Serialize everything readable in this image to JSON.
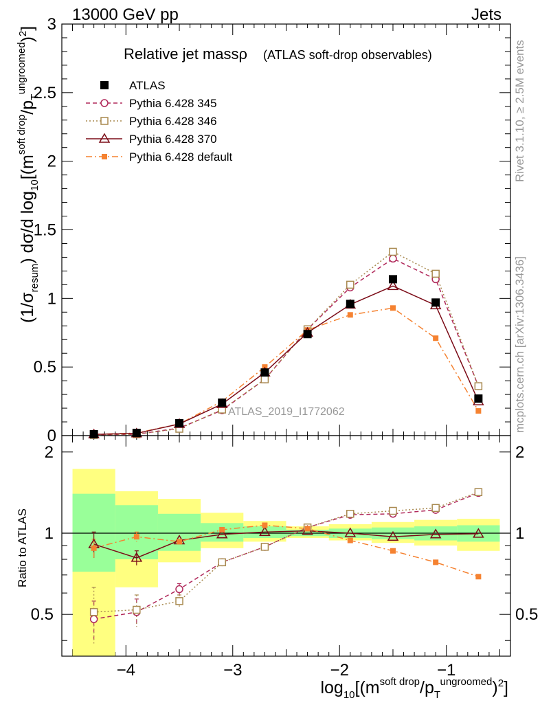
{
  "header": {
    "left": "13000 GeV pp",
    "right": "Jets"
  },
  "side_labels": {
    "rivet": "Rivet 3.1.10, ≥ 2.5M events",
    "mcplots": "mcplots.cern.ch [arXiv:1306.3436]"
  },
  "colors": {
    "atlas": "#000000",
    "p345": "#b0285a",
    "p346": "#a8894f",
    "p370": "#7b0b17",
    "pdef": "#f58231",
    "band_inner": "#99ff99",
    "band_outer": "#ffff80"
  },
  "chart_data": [
    {
      "type": "line",
      "title": "Relative jet massρ",
      "subtitle": "(ATLAS soft-drop observables)",
      "watermark": "ATLAS_2019_I1772062",
      "ylabel": "(1/σ_resum) dσ/d log10[(m^soft drop/pT^ungroomed)^2]",
      "xlim": [
        -4.6,
        -0.4
      ],
      "ylim": [
        0,
        3
      ],
      "yticks": [
        "0",
        "0.5",
        "1",
        "1.5",
        "2",
        "2.5",
        "3"
      ],
      "legend_position": "top-left",
      "x": [
        -4.3,
        -3.9,
        -3.5,
        -3.1,
        -2.7,
        -2.3,
        -1.9,
        -1.5,
        -1.1,
        -0.7
      ],
      "series": [
        {
          "name": "ATLAS",
          "key": "atlas",
          "values": [
            0.01,
            0.02,
            0.09,
            0.24,
            0.46,
            0.74,
            0.96,
            1.14,
            0.97,
            0.27
          ]
        },
        {
          "name": "Pythia 6.428 345",
          "key": "p345",
          "values": [
            0.005,
            0.01,
            0.055,
            0.185,
            0.41,
            0.775,
            1.08,
            1.29,
            1.14,
            0.36
          ]
        },
        {
          "name": "Pythia 6.428 346",
          "key": "p346",
          "values": [
            0.005,
            0.01,
            0.05,
            0.19,
            0.41,
            0.775,
            1.1,
            1.34,
            1.18,
            0.36
          ]
        },
        {
          "name": "Pythia 6.428 370",
          "key": "p370",
          "values": [
            0.009,
            0.016,
            0.085,
            0.23,
            0.46,
            0.75,
            0.955,
            1.09,
            0.95,
            0.25
          ]
        },
        {
          "name": "Pythia 6.428 default",
          "key": "pdef",
          "values": [
            0.009,
            0.019,
            0.085,
            0.25,
            0.5,
            0.77,
            0.88,
            0.93,
            0.71,
            0.18
          ]
        }
      ]
    },
    {
      "type": "line",
      "ylabel": "Ratio to ATLAS",
      "xlabel": "log10[(m^soft drop/pT^ungroomed)^2]",
      "xlim": [
        -4.6,
        -0.4
      ],
      "ylim": [
        0.35,
        2.3
      ],
      "xticks": [
        "−4",
        "−3",
        "−2",
        "−1"
      ],
      "yticks": [
        "0.5",
        "1",
        "2"
      ],
      "x": [
        -4.3,
        -3.9,
        -3.5,
        -3.1,
        -2.7,
        -2.3,
        -1.9,
        -1.5,
        -1.1,
        -0.7
      ],
      "bins": [
        [
          -4.5,
          -4.1
        ],
        [
          -4.1,
          -3.7
        ],
        [
          -3.7,
          -3.3
        ],
        [
          -3.3,
          -2.9
        ],
        [
          -2.9,
          -2.5
        ],
        [
          -2.5,
          -2.1
        ],
        [
          -2.1,
          -1.7
        ],
        [
          -1.7,
          -1.3
        ],
        [
          -1.3,
          -0.9
        ],
        [
          -0.9,
          -0.5
        ]
      ],
      "band_inner": [
        [
          0.72,
          1.4
        ],
        [
          0.8,
          1.27
        ],
        [
          0.86,
          1.18
        ],
        [
          0.93,
          1.09
        ],
        [
          0.96,
          1.06
        ],
        [
          0.975,
          1.03
        ],
        [
          0.96,
          1.04
        ],
        [
          0.95,
          1.05
        ],
        [
          0.94,
          1.06
        ],
        [
          0.93,
          1.07
        ]
      ],
      "band_outer": [
        [
          0.35,
          1.73
        ],
        [
          0.63,
          1.43
        ],
        [
          0.78,
          1.34
        ],
        [
          0.88,
          1.19
        ],
        [
          0.93,
          1.11
        ],
        [
          0.96,
          1.06
        ],
        [
          0.94,
          1.08
        ],
        [
          0.92,
          1.1
        ],
        [
          0.9,
          1.12
        ],
        [
          0.86,
          1.13
        ]
      ],
      "series": [
        {
          "name": "Pythia 6.428 345",
          "key": "p345",
          "values": [
            0.48,
            0.51,
            0.62,
            0.78,
            0.89,
            1.05,
            1.17,
            1.18,
            1.22,
            1.41
          ],
          "err": [
            0.08,
            0.06,
            0.03,
            0.01,
            0.01,
            0.005,
            0.01,
            0.01,
            0.01,
            0.01
          ]
        },
        {
          "name": "Pythia 6.428 346",
          "key": "p346",
          "values": [
            0.51,
            0.52,
            0.56,
            0.78,
            0.89,
            1.05,
            1.18,
            1.21,
            1.24,
            1.42
          ],
          "err": [
            0.12,
            0.07,
            0.03,
            0.01,
            0.01,
            0.005,
            0.01,
            0.01,
            0.01,
            0.01
          ]
        },
        {
          "name": "Pythia 6.428 370",
          "key": "p370",
          "values": [
            0.91,
            0.81,
            0.94,
            0.99,
            1.01,
            1.02,
            1.0,
            0.97,
            0.99,
            0.995
          ],
          "err": [
            0.1,
            0.05,
            0.02,
            0.01,
            0.01,
            0.005,
            0.005,
            0.005,
            0.005,
            0.01
          ]
        },
        {
          "name": "Pythia 6.428 default",
          "key": "pdef",
          "values": [
            0.88,
            0.97,
            0.93,
            1.03,
            1.07,
            1.04,
            0.94,
            0.86,
            0.78,
            0.69
          ],
          "err": [
            0.07,
            0.04,
            0.02,
            0.01,
            0.01,
            0.005,
            0.005,
            0.005,
            0.005,
            0.01
          ]
        }
      ]
    }
  ]
}
